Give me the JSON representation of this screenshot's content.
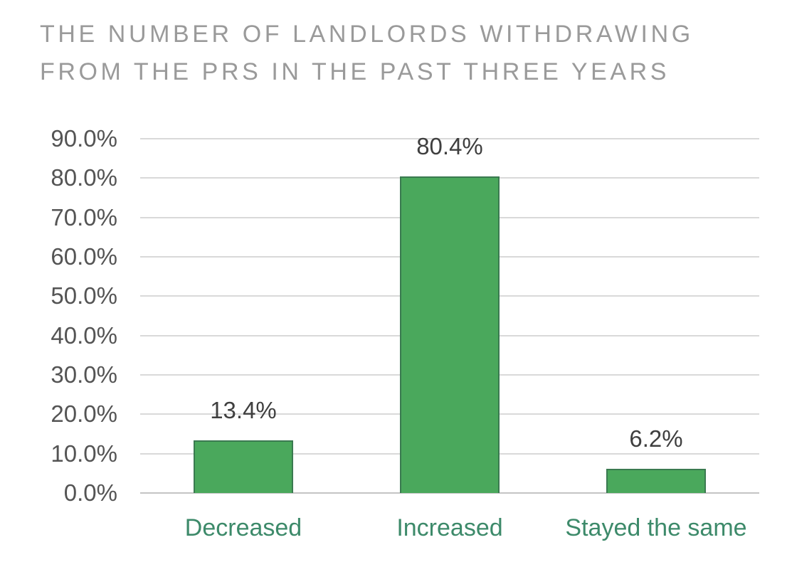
{
  "title": {
    "line1": "THE NUMBER OF LANDLORDS WITHDRAWING",
    "line2": "FROM THE PRS IN THE PAST THREE YEARS"
  },
  "chart_data": {
    "type": "bar",
    "title": "The number of landlords withdrawing from the PRS in the past three years",
    "categories": [
      "Decreased",
      "Increased",
      "Stayed the same"
    ],
    "values": [
      13.4,
      80.4,
      6.2
    ],
    "value_labels": [
      "13.4%",
      "80.4%",
      "6.2%"
    ],
    "xlabel": "",
    "ylabel": "",
    "ylim": [
      0,
      90
    ],
    "ytick_step": 10,
    "yticks_top_to_bottom": [
      "90.0%",
      "80.0%",
      "70.0%",
      "60.0%",
      "50.0%",
      "40.0%",
      "30.0%",
      "20.0%",
      "10.0%",
      "0.0%"
    ],
    "grid": true,
    "legend": false,
    "colors": {
      "bar_fill": "#4aa85c",
      "bar_border": "#3a7a50",
      "title_text": "#9a9a9a",
      "axis_tick_text": "#545454",
      "data_label_text": "#3f3f3f",
      "category_text": "#3d8a6a",
      "gridline": "#d9d9d9",
      "baseline": "#c4c4c4",
      "background": "#ffffff"
    }
  }
}
